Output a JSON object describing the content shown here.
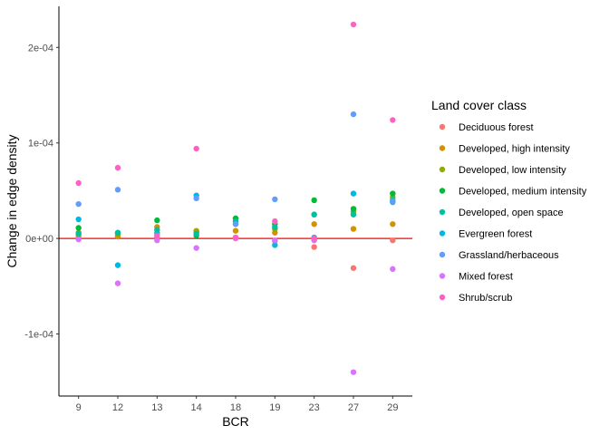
{
  "chart_data": {
    "type": "scatter",
    "xlabel": "BCR",
    "ylabel": "Change in edge density",
    "categories": [
      "9",
      "12",
      "13",
      "14",
      "18",
      "19",
      "23",
      "27",
      "29"
    ],
    "ylim": [
      -0.000165,
      0.000243
    ],
    "yticks": [
      -0.0001,
      0,
      0.0001,
      0.0002
    ],
    "ytick_labels": [
      "-1e-04",
      "0e+00",
      "1e-04",
      "2e-04"
    ],
    "reference_line": {
      "y": 0,
      "color": "#FF0000"
    },
    "grid": false,
    "legend": {
      "title": "Land cover class",
      "position": "right"
    },
    "series": [
      {
        "name": "Deciduous forest",
        "color": "#F8766D",
        "values": [
          2e-06,
          2e-06,
          1e-06,
          6e-06,
          1e-06,
          -3e-06,
          -9e-06,
          -3.1e-05,
          -2e-06
        ]
      },
      {
        "name": "Developed, high intensity",
        "color": "#D39200",
        "values": [
          4e-06,
          2e-06,
          1.2e-05,
          8e-06,
          8e-06,
          6e-06,
          1.5e-05,
          1e-05,
          1.5e-05
        ]
      },
      {
        "name": "Developed, low intensity",
        "color": "#93AA00",
        "values": [
          6e-06,
          5e-06,
          6e-06,
          7e-06,
          2.1e-05,
          1e-05,
          2.5e-05,
          2.8e-05,
          4.3e-05
        ]
      },
      {
        "name": "Developed, medium intensity",
        "color": "#00BA38",
        "values": [
          1.1e-05,
          6e-06,
          1.9e-05,
          3e-06,
          2.1e-05,
          1.5e-05,
          4e-05,
          3.1e-05,
          4.7e-05
        ]
      },
      {
        "name": "Developed, open space",
        "color": "#00C19F",
        "values": [
          5e-06,
          6e-06,
          9e-06,
          5e-06,
          1.8e-05,
          1.2e-05,
          2.5e-05,
          2.5e-05,
          4e-05
        ]
      },
      {
        "name": "Evergreen forest",
        "color": "#00B9E3",
        "values": [
          2e-05,
          -2.8e-05,
          5e-06,
          4.5e-05,
          1.5e-05,
          -7e-06,
          1e-06,
          4.7e-05,
          3.8e-05
        ]
      },
      {
        "name": "Grassland/herbaceous",
        "color": "#619CFF",
        "values": [
          3.6e-05,
          5.1e-05,
          2e-06,
          4.2e-05,
          1.5e-05,
          4.1e-05,
          -1e-06,
          0.00013,
          3.9e-05
        ]
      },
      {
        "name": "Mixed forest",
        "color": "#DB72FB",
        "values": [
          -1e-06,
          -4.7e-05,
          -2e-06,
          -1e-05,
          0.0,
          -2e-06,
          -2e-06,
          -0.00014,
          -3.2e-05
        ]
      },
      {
        "name": "Shrub/scrub",
        "color": "#FF61C3",
        "values": [
          5.8e-05,
          7.4e-05,
          3e-06,
          9.4e-05,
          1e-06,
          1.8e-05,
          0.0,
          0.000224,
          0.000124
        ]
      }
    ]
  }
}
